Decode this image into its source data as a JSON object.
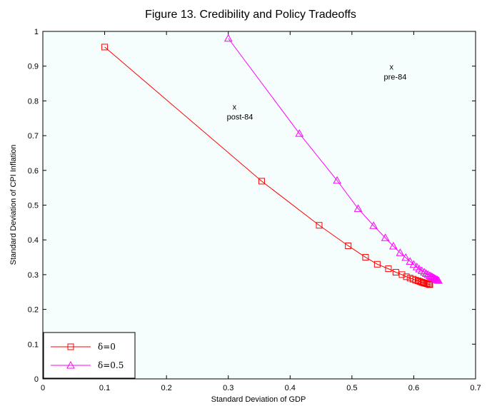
{
  "chart_data": {
    "type": "line",
    "title": "Figure 13. Credibility and Policy Tradeoffs",
    "xlabel": "Standard Deviation of GDP",
    "ylabel": "Standard Deviation of CPI Inflation",
    "xlim": [
      0,
      0.7
    ],
    "ylim": [
      0,
      1
    ],
    "xticks": [
      "0",
      "0.1",
      "0.2",
      "0.3",
      "0.4",
      "0.5",
      "0.6",
      "0.7"
    ],
    "yticks": [
      "0",
      "0.1",
      "0.2",
      "0.3",
      "0.4",
      "0.5",
      "0.6",
      "0.7",
      "0.8",
      "0.9",
      "1"
    ],
    "grid": false,
    "legend_position": "bottom-left",
    "background": "#f5fdfd",
    "series": [
      {
        "name": "δ=0",
        "color": "#ff0000",
        "marker": "square",
        "x": [
          0.1,
          0.354,
          0.447,
          0.494,
          0.522,
          0.541,
          0.559,
          0.571,
          0.581,
          0.588,
          0.594,
          0.599,
          0.603,
          0.607,
          0.61,
          0.613,
          0.615,
          0.617,
          0.619,
          0.621,
          0.623,
          0.625,
          0.626
        ],
        "y": [
          0.955,
          0.569,
          0.442,
          0.383,
          0.35,
          0.33,
          0.317,
          0.307,
          0.3,
          0.294,
          0.29,
          0.287,
          0.284,
          0.282,
          0.28,
          0.278,
          0.277,
          0.276,
          0.275,
          0.274,
          0.273,
          0.272,
          0.271
        ]
      },
      {
        "name": "δ=0.5",
        "color": "#ff00ff",
        "marker": "triangle",
        "x": [
          0.3,
          0.415,
          0.476,
          0.51,
          0.535,
          0.554,
          0.567,
          0.578,
          0.587,
          0.594,
          0.6,
          0.605,
          0.609,
          0.613,
          0.617,
          0.62,
          0.623,
          0.626,
          0.628,
          0.63,
          0.632,
          0.634,
          0.636,
          0.638,
          0.64
        ],
        "y": [
          0.98,
          0.706,
          0.571,
          0.49,
          0.441,
          0.406,
          0.382,
          0.363,
          0.349,
          0.338,
          0.329,
          0.322,
          0.316,
          0.311,
          0.307,
          0.303,
          0.3,
          0.297,
          0.295,
          0.293,
          0.291,
          0.289,
          0.287,
          0.285,
          0.283
        ]
      }
    ],
    "annotations": [
      {
        "marker": "x",
        "label": "pre-84",
        "x": 0.577,
        "y": 0.87
      },
      {
        "marker": "x",
        "label": "post-84",
        "x": 0.323,
        "y": 0.755
      }
    ]
  }
}
